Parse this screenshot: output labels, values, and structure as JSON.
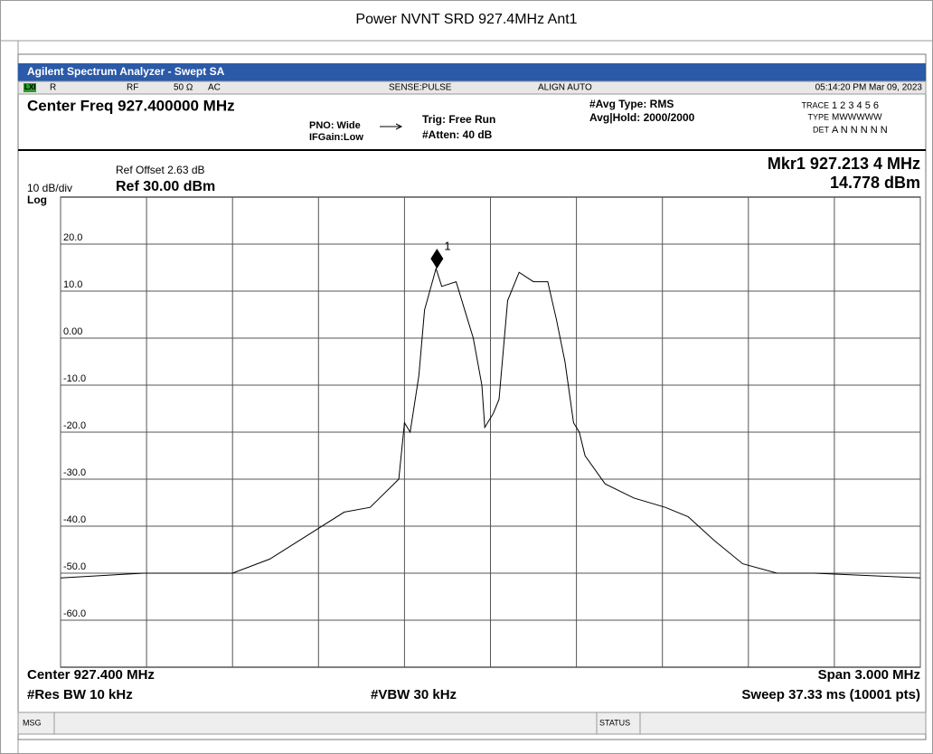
{
  "page_title": "Power NVNT SRD 927.4MHz Ant1",
  "window_title": "Agilent Spectrum Analyzer - Swept SA",
  "status_bar": {
    "lxi": "LXI",
    "r": "R",
    "rf": "RF",
    "impedance": "50 Ω",
    "coupling": "AC",
    "sense": "SENSE:PULSE",
    "align": "ALIGN AUTO",
    "datetime": "05:14:20 PM Mar 09, 2023"
  },
  "header": {
    "center_freq": "Center Freq 927.400000 MHz",
    "pno": "PNO: Wide",
    "ifgain": "IFGain:Low",
    "trig": "Trig: Free Run",
    "atten": "#Atten: 40 dB",
    "avg_type": "#Avg Type: RMS",
    "avg_hold": "Avg|Hold: 2000/2000",
    "trace_label": "TRACE",
    "trace_values": "1 2 3 4 5 6",
    "type_label": "TYPE",
    "type_values": "MWWWWW",
    "det_label": "DET",
    "det_values": "A N N N N N"
  },
  "ref_offset": "Ref Offset 2.63 dB",
  "scale": "10 dB/div",
  "ref_level": "Ref 30.00 dBm",
  "log": "Log",
  "footer": {
    "center": "Center 927.400 MHz",
    "rbw": "#Res BW 10 kHz",
    "vbw": "#VBW 30 kHz",
    "span": "Span 3.000 MHz",
    "sweep": "Sweep  37.33 ms (10001 pts)"
  },
  "msg": "MSG",
  "status": "STATUS",
  "chart_data": {
    "type": "line",
    "color": "#000000",
    "grid": true,
    "x": [
      925.9,
      926.19,
      926.5,
      926.63,
      926.76,
      926.89,
      926.98,
      927.08,
      927.1,
      927.12,
      927.15,
      927.17,
      927.21,
      927.23,
      927.28,
      927.31,
      927.34,
      927.37,
      927.38,
      927.41,
      927.43,
      927.46,
      927.5,
      927.55,
      927.6,
      927.63,
      927.66,
      927.69,
      927.71,
      927.73,
      927.8,
      927.9,
      928.01,
      928.09,
      928.18,
      928.28,
      928.4,
      928.53,
      928.9
    ],
    "values": [
      -51,
      -50,
      -50,
      -47,
      -42,
      -37,
      -36,
      -30,
      -18,
      -20,
      -8,
      6,
      14.8,
      11,
      12,
      6,
      0,
      -10,
      -19,
      -16,
      -13,
      8,
      14,
      12,
      12,
      4,
      -5,
      -18,
      -20,
      -25,
      -31,
      -34,
      -36,
      -38,
      -43,
      -48,
      -50,
      -50,
      -51
    ],
    "xlim": [
      925.9,
      928.9
    ],
    "xticks": [
      925.9,
      926.2,
      926.5,
      926.8,
      927.1,
      927.4,
      927.7,
      928.0,
      928.3,
      928.6,
      928.9
    ],
    "ylim": [
      -70,
      30
    ],
    "yticks": [
      {
        "value": 20,
        "label": "20.0"
      },
      {
        "value": 10,
        "label": "10.0"
      },
      {
        "value": 0,
        "label": "0.00"
      },
      {
        "value": -10,
        "label": "-10.0"
      },
      {
        "value": -20,
        "label": "-20.0"
      },
      {
        "value": -30,
        "label": "-30.0"
      },
      {
        "value": -40,
        "label": "-40.0"
      },
      {
        "value": -50,
        "label": "-50.0"
      },
      {
        "value": -60,
        "label": "-60.0"
      }
    ],
    "marker": {
      "x": 927.2134,
      "y": 14.778,
      "label": "1",
      "readout_freq": "Mkr1 927.213 4 MHz",
      "readout_amp": "14.778 dBm"
    }
  }
}
